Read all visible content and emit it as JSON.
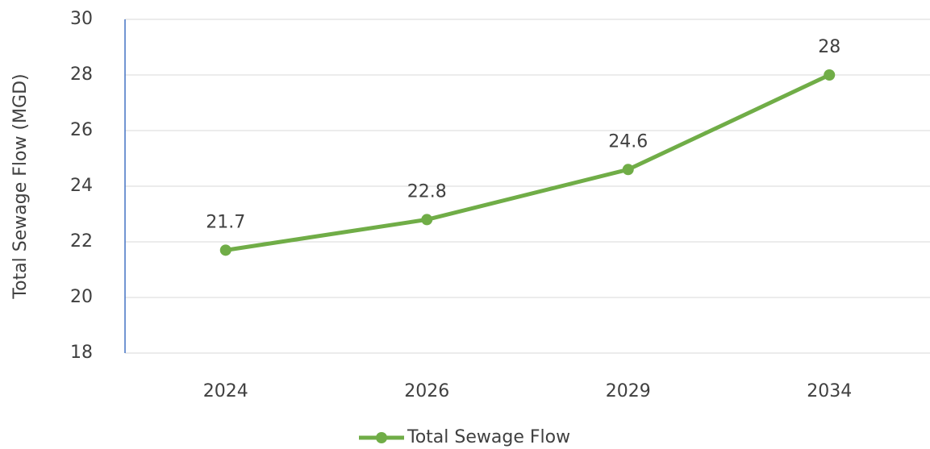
{
  "chart_data": {
    "type": "line",
    "y_label": "Total Sewage Flow (MGD)",
    "categories": [
      "2024",
      "2026",
      "2029",
      "2034"
    ],
    "series": [
      {
        "name": "Total Sewage Flow",
        "color": "#70ad47",
        "values": [
          21.7,
          22.8,
          24.6,
          28
        ]
      }
    ],
    "ylim": [
      18,
      30
    ],
    "yticks": [
      18,
      20,
      22,
      24,
      26,
      28,
      30
    ],
    "grid": true,
    "legend": "bottom"
  }
}
